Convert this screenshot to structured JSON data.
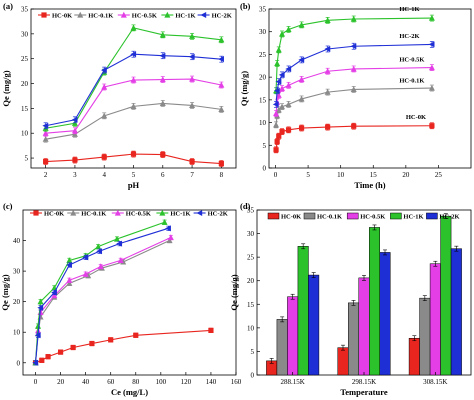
{
  "colors": {
    "HC-0K": "#e8251f",
    "HC-0.1K": "#8a8a8a",
    "HC-0.5K": "#e43fe6",
    "HC-1K": "#2bc22b",
    "HC-2K": "#1f2fd6"
  },
  "chart_data": [
    {
      "panel_label": "(a)",
      "type": "line",
      "xlabel": "pH",
      "ylabel": "Qe (mg/g)",
      "xlim": [
        1.5,
        8.5
      ],
      "ylim": [
        3,
        35
      ],
      "xticks": [
        2,
        3,
        4,
        5,
        6,
        7,
        8
      ],
      "yticks": [
        5,
        10,
        15,
        20,
        25,
        30,
        35
      ],
      "x": [
        2,
        3,
        4,
        5,
        6,
        7,
        8
      ],
      "legend": "top-left, horizontal",
      "series": [
        {
          "name": "HC-0K",
          "values": [
            4.3,
            4.6,
            5.2,
            5.8,
            5.7,
            4.3,
            3.9
          ]
        },
        {
          "name": "HC-0.1K",
          "values": [
            8.8,
            9.8,
            13.5,
            15.4,
            16.0,
            15.6,
            14.8
          ]
        },
        {
          "name": "HC-0.5K",
          "values": [
            10.0,
            10.5,
            19.3,
            20.7,
            20.8,
            20.9,
            19.7
          ]
        },
        {
          "name": "HC-1K",
          "values": [
            11.0,
            12.0,
            22.3,
            31.2,
            29.8,
            29.5,
            28.8
          ]
        },
        {
          "name": "HC-2K",
          "values": [
            11.5,
            12.7,
            22.7,
            25.9,
            25.6,
            25.4,
            24.9
          ]
        }
      ]
    },
    {
      "panel_label": "(b)",
      "type": "line",
      "xlabel": "Time (h)",
      "ylabel": "Qt (mg/g)",
      "xlim": [
        -1,
        30
      ],
      "ylim": [
        0,
        35
      ],
      "xticks": [
        0,
        5,
        10,
        15,
        20,
        25
      ],
      "yticks": [
        0,
        5,
        10,
        15,
        20,
        25,
        30,
        35
      ],
      "x": [
        0.083,
        0.25,
        0.5,
        1,
        2,
        4,
        8,
        12,
        24
      ],
      "series": [
        {
          "name": "HC-0K",
          "values": [
            4.0,
            5.8,
            7.0,
            8.0,
            8.4,
            8.8,
            9.0,
            9.2,
            9.3
          ]
        },
        {
          "name": "HC-0.1K",
          "values": [
            9.5,
            11.5,
            12.8,
            13.5,
            14.0,
            15.2,
            16.7,
            17.3,
            17.6
          ]
        },
        {
          "name": "HC-0.5K",
          "values": [
            12.0,
            14.5,
            16.0,
            17.5,
            18.2,
            19.5,
            21.3,
            21.8,
            22.1
          ]
        },
        {
          "name": "HC-1K",
          "values": [
            17.0,
            23.0,
            26.0,
            29.5,
            30.5,
            31.5,
            32.5,
            32.8,
            33.0
          ]
        },
        {
          "name": "HC-2K",
          "values": [
            14.0,
            17.0,
            19.0,
            20.5,
            21.8,
            23.8,
            26.2,
            26.8,
            27.2
          ]
        }
      ],
      "labels": [
        {
          "text": "HC-1K",
          "x": 19,
          "y": 34.6
        },
        {
          "text": "HC-2K",
          "x": 19,
          "y": 28.6
        },
        {
          "text": "HC-0.5K",
          "x": 19,
          "y": 23.4
        },
        {
          "text": "HC-0.1K",
          "x": 19,
          "y": 18.8
        },
        {
          "text": "HC-0K",
          "x": 20,
          "y": 10.8
        }
      ]
    },
    {
      "panel_label": "(c)",
      "type": "line",
      "xlabel": "Ce (mg/L)",
      "ylabel": "Qe (mg/g)",
      "xlim": [
        -10,
        160
      ],
      "ylim": [
        -4,
        50
      ],
      "xticks": [
        0,
        20,
        40,
        60,
        80,
        100,
        120,
        140,
        160
      ],
      "yticks": [
        0,
        10,
        20,
        30,
        40
      ],
      "legend": "top-left, horizontal",
      "series": [
        {
          "name": "HC-0K",
          "x": [
            0,
            5,
            10,
            20,
            30,
            45,
            60,
            80,
            140
          ],
          "values": [
            0,
            0.8,
            2.0,
            3.5,
            5.0,
            6.3,
            7.5,
            9.0,
            10.6
          ]
        },
        {
          "name": "HC-0.1K",
          "x": [
            0,
            2,
            4,
            15,
            27,
            42,
            53,
            70,
            107
          ],
          "values": [
            0,
            9.5,
            15.0,
            21.5,
            26.0,
            28.5,
            31.0,
            33.0,
            40.0
          ]
        },
        {
          "name": "HC-0.5K",
          "x": [
            0,
            2,
            4,
            15,
            27,
            40,
            52,
            68,
            108
          ],
          "values": [
            0,
            10.5,
            16.5,
            22.0,
            27.0,
            29.0,
            31.5,
            33.5,
            41.0
          ]
        },
        {
          "name": "HC-1K",
          "x": [
            0,
            2,
            4,
            15,
            27,
            40,
            50,
            65,
            103
          ],
          "values": [
            0,
            12.0,
            20.0,
            24.5,
            33.5,
            35.0,
            38.0,
            40.5,
            46.0
          ]
        },
        {
          "name": "HC-2K",
          "x": [
            0,
            2,
            4,
            15,
            27,
            40,
            51,
            67,
            106
          ],
          "values": [
            0,
            9.0,
            18.0,
            23.0,
            32.0,
            34.5,
            36.5,
            39.0,
            44.0
          ]
        }
      ]
    },
    {
      "panel_label": "(d)",
      "type": "bar",
      "xlabel": "Temperature",
      "ylabel": "Qe (mg/g)",
      "categories": [
        "288.15K",
        "298.15K",
        "308.15K"
      ],
      "ylim": [
        0,
        35
      ],
      "yticks": [
        0,
        5,
        10,
        15,
        20,
        25,
        30,
        35
      ],
      "legend": "top, horizontal",
      "series": [
        {
          "name": "HC-0K",
          "values": [
            3.0,
            5.8,
            7.8
          ]
        },
        {
          "name": "HC-0.1K",
          "values": [
            11.8,
            15.3,
            16.3
          ]
        },
        {
          "name": "HC-0.5K",
          "values": [
            16.6,
            20.6,
            23.6
          ]
        },
        {
          "name": "HC-1K",
          "values": [
            27.3,
            31.3,
            33.7
          ]
        },
        {
          "name": "HC-2K",
          "values": [
            21.2,
            26.0,
            26.8
          ]
        }
      ]
    }
  ]
}
